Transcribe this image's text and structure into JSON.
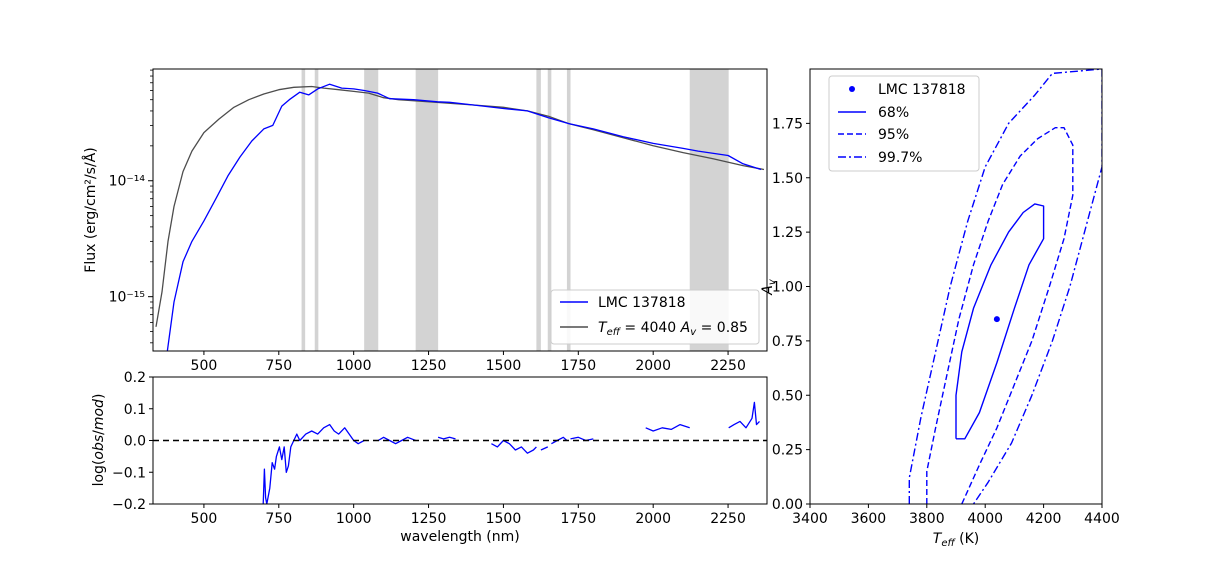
{
  "chart_data": [
    {
      "type": "line",
      "panel": "spectrum",
      "title": "",
      "xlabel": "",
      "ylabel": "Flux (erg/cm²/s/Å)",
      "yscale": "log",
      "xlim": [
        330,
        2380
      ],
      "ylim": [
        3.4e-16,
        9.2e-14
      ],
      "xticks": [
        500,
        750,
        1000,
        1250,
        1500,
        1750,
        2000,
        2250
      ],
      "yticks": [
        1e-15,
        1e-14
      ],
      "ytick_labels": [
        "10⁻¹⁵",
        "10⁻¹⁴"
      ],
      "excluded_bands": [
        [
          826,
          838
        ],
        [
          870,
          882
        ],
        [
          1035,
          1082
        ],
        [
          1207,
          1282
        ],
        [
          1610,
          1625
        ],
        [
          1648,
          1660
        ],
        [
          1712,
          1724
        ],
        [
          2122,
          2252
        ]
      ],
      "legend": {
        "position": "lower-right",
        "entries": [
          "LMC 137818",
          "T_eff = 4040 A_v = 0.85"
        ]
      },
      "series": [
        {
          "name": "LMC 137818",
          "color": "#0000ff",
          "points": [
            [
              375,
              3e-16
            ],
            [
              400,
              9e-16
            ],
            [
              430,
              2e-15
            ],
            [
              460,
              3e-15
            ],
            [
              500,
              4.5e-15
            ],
            [
              540,
              7e-15
            ],
            [
              580,
              1.1e-14
            ],
            [
              620,
              1.6e-14
            ],
            [
              660,
              2.2e-14
            ],
            [
              700,
              2.8e-14
            ],
            [
              730,
              3e-14
            ],
            [
              760,
              4.4e-14
            ],
            [
              785,
              5e-14
            ],
            [
              820,
              5.8e-14
            ],
            [
              850,
              5.5e-14
            ],
            [
              880,
              6.2e-14
            ],
            [
              920,
              6.8e-14
            ],
            [
              960,
              6.3e-14
            ],
            [
              1000,
              6.2e-14
            ],
            [
              1035,
              6e-14
            ],
            [
              1080,
              5.7e-14
            ],
            [
              1120,
              5.1e-14
            ],
            [
              1200,
              5e-14
            ],
            [
              1280,
              4.8e-14
            ],
            [
              1320,
              4.75e-14
            ],
            [
              1400,
              4.5e-14
            ],
            [
              1500,
              4.2e-14
            ],
            [
              1580,
              4e-14
            ],
            [
              1650,
              3.5e-14
            ],
            [
              1720,
              3.1e-14
            ],
            [
              1800,
              2.8e-14
            ],
            [
              1900,
              2.4e-14
            ],
            [
              2000,
              2.1e-14
            ],
            [
              2100,
              1.9e-14
            ],
            [
              2150,
              1.8e-14
            ],
            [
              2250,
              1.65e-14
            ],
            [
              2300,
              1.4e-14
            ],
            [
              2360,
              1.25e-14
            ]
          ]
        },
        {
          "name": "T_eff = 4040 A_v = 0.85",
          "color": "#4d4d4d",
          "points": [
            [
              340,
              5.5e-16
            ],
            [
              360,
              1.1e-15
            ],
            [
              380,
              3e-15
            ],
            [
              400,
              6e-15
            ],
            [
              430,
              1.2e-14
            ],
            [
              460,
              1.8e-14
            ],
            [
              500,
              2.6e-14
            ],
            [
              550,
              3.4e-14
            ],
            [
              600,
              4.3e-14
            ],
            [
              650,
              5e-14
            ],
            [
              700,
              5.6e-14
            ],
            [
              750,
              6.1e-14
            ],
            [
              800,
              6.4e-14
            ],
            [
              860,
              6.5e-14
            ],
            [
              900,
              6.3e-14
            ],
            [
              950,
              6.1e-14
            ],
            [
              1000,
              5.9e-14
            ],
            [
              1050,
              5.7e-14
            ],
            [
              1100,
              5.2e-14
            ],
            [
              1150,
              5e-14
            ],
            [
              1200,
              4.9e-14
            ],
            [
              1300,
              4.7e-14
            ],
            [
              1400,
              4.5e-14
            ],
            [
              1500,
              4.3e-14
            ],
            [
              1580,
              4e-14
            ],
            [
              1650,
              3.6e-14
            ],
            [
              1720,
              3.1e-14
            ],
            [
              1800,
              2.75e-14
            ],
            [
              1900,
              2.35e-14
            ],
            [
              2000,
              2e-14
            ],
            [
              2100,
              1.75e-14
            ],
            [
              2200,
              1.55e-14
            ],
            [
              2300,
              1.35e-14
            ],
            [
              2370,
              1.25e-14
            ]
          ]
        }
      ]
    },
    {
      "type": "line",
      "panel": "residuals",
      "title": "",
      "xlabel": "wavelength (nm)",
      "ylabel": "log(obs/mod)",
      "xlim": [
        330,
        2380
      ],
      "ylim": [
        -0.2,
        0.2
      ],
      "xticks": [
        500,
        750,
        1000,
        1250,
        1500,
        1750,
        2000,
        2250
      ],
      "yticks": [
        -0.2,
        -0.1,
        0.0,
        0.1,
        0.2
      ],
      "ytick_labels": [
        "−0.2",
        "−0.1",
        "0.0",
        "0.1",
        "0.2"
      ],
      "zero_line": {
        "y": 0.0,
        "style": "dashed",
        "color": "#000000"
      },
      "series": [
        {
          "name": "",
          "color": "#0000ff",
          "segments": [
            [
              [
                698,
                -0.2
              ],
              [
                702,
                -0.09
              ],
              [
                706,
                -0.18
              ],
              [
                710,
                -0.2
              ],
              [
                720,
                -0.15
              ],
              [
                728,
                -0.07
              ],
              [
                736,
                -0.09
              ],
              [
                742,
                -0.05
              ],
              [
                752,
                -0.02
              ],
              [
                760,
                -0.06
              ],
              [
                768,
                -0.02
              ],
              [
                775,
                -0.1
              ],
              [
                782,
                -0.08
              ],
              [
                790,
                -0.02
              ],
              [
                800,
                0.0
              ],
              [
                810,
                0.02
              ],
              [
                820,
                0.0
              ],
              [
                840,
                0.02
              ],
              [
                860,
                0.03
              ],
              [
                880,
                0.02
              ],
              [
                900,
                0.04
              ],
              [
                920,
                0.05
              ],
              [
                935,
                0.03
              ],
              [
                950,
                0.02
              ],
              [
                970,
                0.04
              ],
              [
                985,
                0.02
              ],
              [
                1000,
                0.0
              ],
              [
                1015,
                -0.01
              ],
              [
                1035,
                0.0
              ]
            ],
            [
              [
                1082,
                0.0
              ],
              [
                1100,
                0.01
              ],
              [
                1120,
                0.0
              ],
              [
                1140,
                -0.01
              ],
              [
                1160,
                0.0
              ],
              [
                1180,
                0.01
              ],
              [
                1207,
                0.0
              ]
            ],
            [
              [
                1282,
                0.01
              ],
              [
                1300,
                0.005
              ],
              [
                1320,
                0.01
              ],
              [
                1340,
                0.005
              ]
            ],
            [
              [
                1460,
                -0.01
              ],
              [
                1480,
                -0.02
              ],
              [
                1500,
                0.0
              ],
              [
                1520,
                -0.01
              ],
              [
                1540,
                -0.03
              ],
              [
                1560,
                -0.02
              ],
              [
                1580,
                -0.04
              ],
              [
                1600,
                -0.03
              ],
              [
                1610,
                -0.02
              ]
            ],
            [
              [
                1625,
                -0.03
              ],
              [
                1648,
                -0.02
              ]
            ],
            [
              [
                1660,
                -0.01
              ],
              [
                1680,
                0.0
              ],
              [
                1700,
                0.01
              ],
              [
                1712,
                0.0
              ]
            ],
            [
              [
                1724,
                0.005
              ],
              [
                1750,
                0.01
              ],
              [
                1775,
                0.0
              ],
              [
                1800,
                0.005
              ]
            ],
            [
              [
                1975,
                0.04
              ],
              [
                2000,
                0.03
              ],
              [
                2030,
                0.04
              ],
              [
                2060,
                0.035
              ],
              [
                2090,
                0.05
              ],
              [
                2122,
                0.04
              ]
            ],
            [
              [
                2252,
                0.04
              ],
              [
                2270,
                0.05
              ],
              [
                2290,
                0.06
              ],
              [
                2310,
                0.04
              ],
              [
                2330,
                0.07
              ],
              [
                2338,
                0.12
              ],
              [
                2345,
                0.05
              ],
              [
                2355,
                0.06
              ]
            ]
          ]
        }
      ]
    },
    {
      "type": "contour",
      "panel": "confidence",
      "title": "",
      "xlabel": "T_eff (K)",
      "ylabel": "A_v",
      "xlim": [
        3400,
        4400
      ],
      "ylim": [
        0.0,
        2.0
      ],
      "xticks": [
        3400,
        3600,
        3800,
        4000,
        4200,
        4400
      ],
      "yticks": [
        0.0,
        0.25,
        0.5,
        0.75,
        1.0,
        1.25,
        1.5,
        1.75
      ],
      "ytick_labels": [
        "0.00",
        "0.25",
        "0.50",
        "0.75",
        "1.00",
        "1.25",
        "1.50",
        "1.75"
      ],
      "best_fit": {
        "label": "LMC 137818",
        "teff": 4040,
        "av": 0.85,
        "color": "#0000ff"
      },
      "legend": {
        "position": "upper-left",
        "entries": [
          "LMC 137818",
          "68%",
          "95%",
          "99.7%"
        ]
      },
      "contours": [
        {
          "level": "68%",
          "style": "solid",
          "color": "#0000ff",
          "points": [
            [
              3900,
              0.3
            ],
            [
              3930,
              0.3
            ],
            [
              3980,
              0.42
            ],
            [
              4040,
              0.65
            ],
            [
              4100,
              0.9
            ],
            [
              4150,
              1.1
            ],
            [
              4200,
              1.22
            ],
            [
              4200,
              1.37
            ],
            [
              4170,
              1.38
            ],
            [
              4130,
              1.34
            ],
            [
              4080,
              1.25
            ],
            [
              4020,
              1.1
            ],
            [
              3960,
              0.9
            ],
            [
              3920,
              0.7
            ],
            [
              3900,
              0.5
            ],
            [
              3900,
              0.3
            ]
          ]
        },
        {
          "level": "95%",
          "style": "dashed",
          "color": "#0000ff",
          "points": [
            [
              3800,
              0.0
            ],
            [
              3800,
              0.15
            ],
            [
              3830,
              0.35
            ],
            [
              3870,
              0.6
            ],
            [
              3910,
              0.85
            ],
            [
              3960,
              1.1
            ],
            [
              4010,
              1.3
            ],
            [
              4060,
              1.47
            ],
            [
              4120,
              1.6
            ],
            [
              4180,
              1.68
            ],
            [
              4240,
              1.73
            ],
            [
              4270,
              1.73
            ],
            [
              4300,
              1.65
            ],
            [
              4300,
              1.42
            ],
            [
              4270,
              1.22
            ],
            [
              4220,
              1.0
            ],
            [
              4160,
              0.75
            ],
            [
              4100,
              0.55
            ],
            [
              4040,
              0.35
            ],
            [
              3980,
              0.18
            ],
            [
              3920,
              0.0
            ]
          ]
        },
        {
          "level": "99.7%",
          "style": "dashdot",
          "color": "#0000ff",
          "points": [
            [
              3740,
              0.0
            ],
            [
              3740,
              0.12
            ],
            [
              3780,
              0.4
            ],
            [
              3830,
              0.7
            ],
            [
              3880,
              1.0
            ],
            [
              3940,
              1.3
            ],
            [
              4000,
              1.55
            ],
            [
              4080,
              1.75
            ],
            [
              4170,
              1.88
            ],
            [
              4230,
              1.98
            ],
            [
              4400,
              2.0
            ],
            [
              4400,
              1.55
            ],
            [
              4350,
              1.3
            ],
            [
              4290,
              1.0
            ],
            [
              4230,
              0.75
            ],
            [
              4160,
              0.5
            ],
            [
              4090,
              0.28
            ],
            [
              4010,
              0.1
            ],
            [
              3960,
              0.0
            ]
          ]
        }
      ]
    }
  ]
}
